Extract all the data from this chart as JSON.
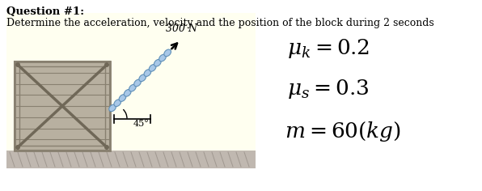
{
  "bg_color": "#ffffff",
  "title_bold": "Question #1:",
  "subtitle": "Determine the acceleration, velocity and the position of the block during 2 seconds",
  "param1": "$\\mu_k = 0.2$",
  "param2": "$\\mu_s = 0.3$",
  "param3": "$m = 60(kg)$",
  "force_label": "300 N",
  "angle_label": "45°",
  "diagram_bg": "#fffff0",
  "crate_fill": "#b8b0a0",
  "crate_edge": "#888070",
  "crate_dark": "#706858",
  "ground_fill": "#c8c0b8",
  "chain_fill": "#a8c8e8",
  "chain_edge": "#6090b8"
}
